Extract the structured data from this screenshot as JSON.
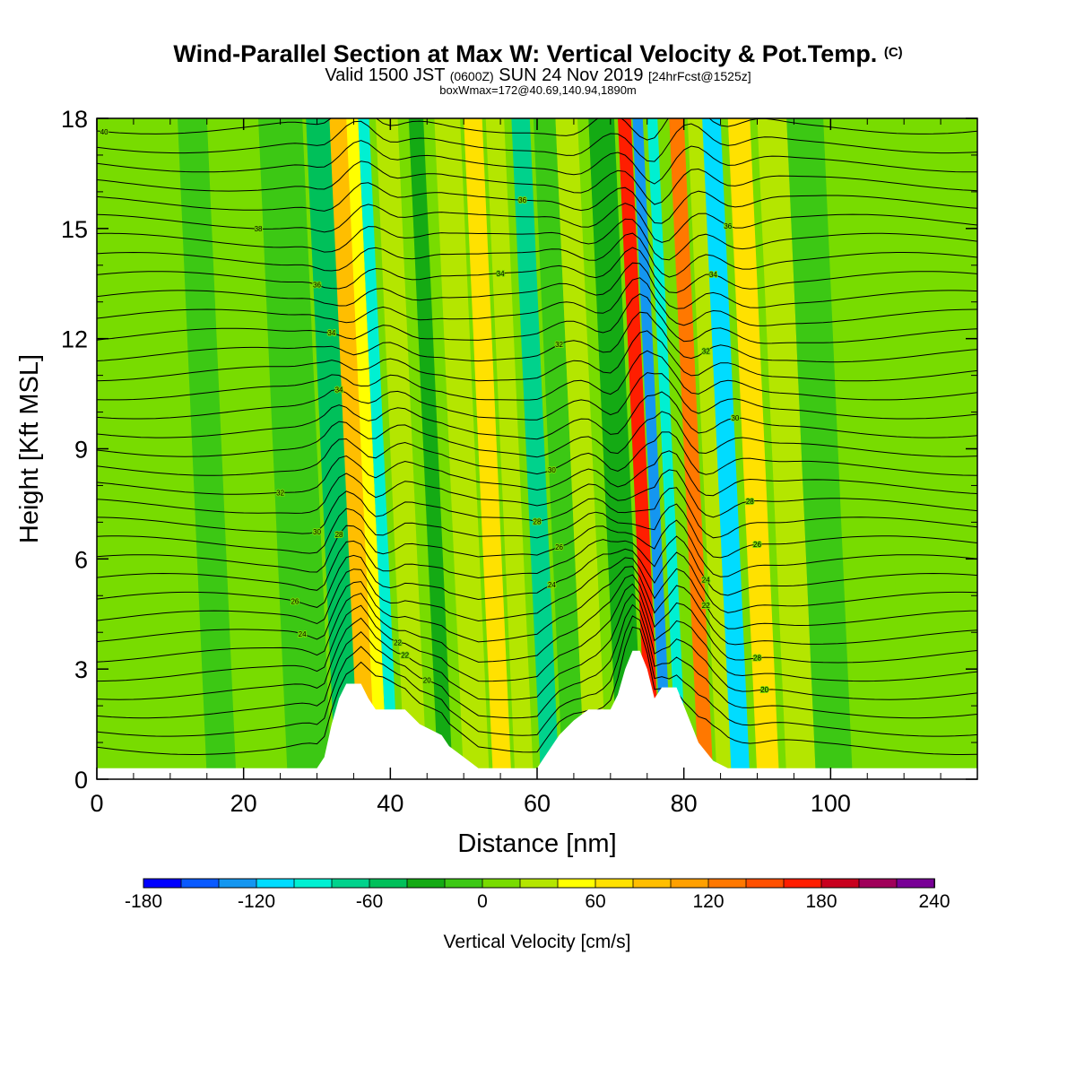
{
  "title": {
    "main": "Wind-Parallel Section at Max W: Vertical Velocity & Pot.Temp.",
    "copyright": "(C)",
    "valid_prefix": "Valid 1500 JST",
    "valid_utc": "(0600Z)",
    "valid_date": "SUN 24 Nov 2019",
    "forecast": "[24hrFcst@1525z]",
    "boxinfo": "boxWmax=172@40.69,140.94,1890m"
  },
  "chart_data": {
    "type": "heatmap",
    "xlabel": "Distance [nm]",
    "ylabel": "Height [Kft MSL]",
    "xlim": [
      0,
      120
    ],
    "ylim": [
      0,
      18
    ],
    "x_ticks": [
      0,
      20,
      40,
      60,
      80,
      100
    ],
    "y_ticks": [
      0,
      3,
      6,
      9,
      12,
      15,
      18
    ],
    "colorbar": {
      "label": "Vertical Velocity [cm/s]",
      "min": -180,
      "max": 240,
      "step": 20,
      "tick_labels": [
        "-180",
        "-120",
        "-60",
        "0",
        "60",
        "120",
        "180",
        "240"
      ],
      "colors": [
        "#0000ff",
        "#0a5aff",
        "#1496f0",
        "#00dcff",
        "#00f0d2",
        "#00d28c",
        "#00c05a",
        "#14aa14",
        "#3cc814",
        "#78dc00",
        "#b4e600",
        "#ffff00",
        "#ffe100",
        "#ffbe00",
        "#ffa000",
        "#ff7800",
        "#ff5000",
        "#ff1e00",
        "#c8001e",
        "#a0005a",
        "#780096"
      ]
    },
    "velocity_bands": [
      {
        "x": 0,
        "w": 28,
        "v": 5
      },
      {
        "x": 5,
        "w": 4,
        "v": 15
      },
      {
        "x": 15,
        "w": 4,
        "v": -5
      },
      {
        "x": 26,
        "w": 6,
        "v": -20
      },
      {
        "x": 32.5,
        "w": 3.5,
        "v": -45
      },
      {
        "x": 35.7,
        "w": 2.6,
        "v": 85
      },
      {
        "x": 38,
        "w": 1.6,
        "v": 40
      },
      {
        "x": 39.6,
        "w": 1.5,
        "v": -85
      },
      {
        "x": 42,
        "w": 3,
        "v": 25
      },
      {
        "x": 46.5,
        "w": 2,
        "v": -40
      },
      {
        "x": 50,
        "w": 3.5,
        "v": 30
      },
      {
        "x": 54,
        "w": 2.5,
        "v": 65
      },
      {
        "x": 57,
        "w": 2.5,
        "v": 25
      },
      {
        "x": 60.5,
        "w": 2.5,
        "v": -80
      },
      {
        "x": 63.5,
        "w": 3,
        "v": -20
      },
      {
        "x": 66.5,
        "w": 3,
        "v": 35
      },
      {
        "x": 71,
        "w": 3.5,
        "v": -30
      },
      {
        "x": 75,
        "w": 1.8,
        "v": 165
      },
      {
        "x": 77,
        "w": 1.4,
        "v": -140
      },
      {
        "x": 79,
        "w": 1.4,
        "v": -90
      },
      {
        "x": 82,
        "w": 2,
        "v": 130
      },
      {
        "x": 84.5,
        "w": 2.5,
        "v": 30
      },
      {
        "x": 86.5,
        "w": 2.5,
        "v": -110
      },
      {
        "x": 90,
        "w": 3,
        "v": 70
      },
      {
        "x": 94,
        "w": 4,
        "v": 20
      },
      {
        "x": 98,
        "w": 5,
        "v": -20
      },
      {
        "x": 104,
        "w": 6,
        "v": 15
      },
      {
        "x": 110,
        "w": 10,
        "v": 5
      }
    ],
    "band_slope_kft_per_nm": 4.5,
    "terrain": [
      [
        0,
        0.3
      ],
      [
        30,
        0.3
      ],
      [
        31,
        0.6
      ],
      [
        32,
        1.5
      ],
      [
        33,
        2.2
      ],
      [
        34,
        2.6
      ],
      [
        36,
        2.6
      ],
      [
        37,
        2.2
      ],
      [
        38,
        1.9
      ],
      [
        42,
        1.9
      ],
      [
        44,
        1.5
      ],
      [
        47,
        1.2
      ],
      [
        48,
        0.9
      ],
      [
        50,
        0.6
      ],
      [
        52,
        0.3
      ],
      [
        60,
        0.3
      ],
      [
        61,
        0.6
      ],
      [
        63,
        1.2
      ],
      [
        65,
        1.6
      ],
      [
        67,
        1.9
      ],
      [
        70,
        1.9
      ],
      [
        71,
        2.3
      ],
      [
        72,
        3.0
      ],
      [
        73,
        3.5
      ],
      [
        74,
        3.5
      ],
      [
        75,
        3.0
      ],
      [
        76,
        2.2
      ],
      [
        77,
        2.5
      ],
      [
        79,
        2.5
      ],
      [
        80,
        2.0
      ],
      [
        81,
        1.5
      ],
      [
        82,
        1.0
      ],
      [
        84,
        0.5
      ],
      [
        86,
        0.3
      ],
      [
        120,
        0.3
      ]
    ],
    "isentrope_labels": [
      "40",
      "38",
      "36",
      "34",
      "34",
      "32",
      "30",
      "28",
      "26",
      "24",
      "22",
      "22",
      "20",
      "36",
      "34",
      "32",
      "30",
      "28",
      "26",
      "24",
      "36",
      "34",
      "32",
      "30",
      "28",
      "26",
      "24",
      "22",
      "20",
      "28"
    ]
  }
}
